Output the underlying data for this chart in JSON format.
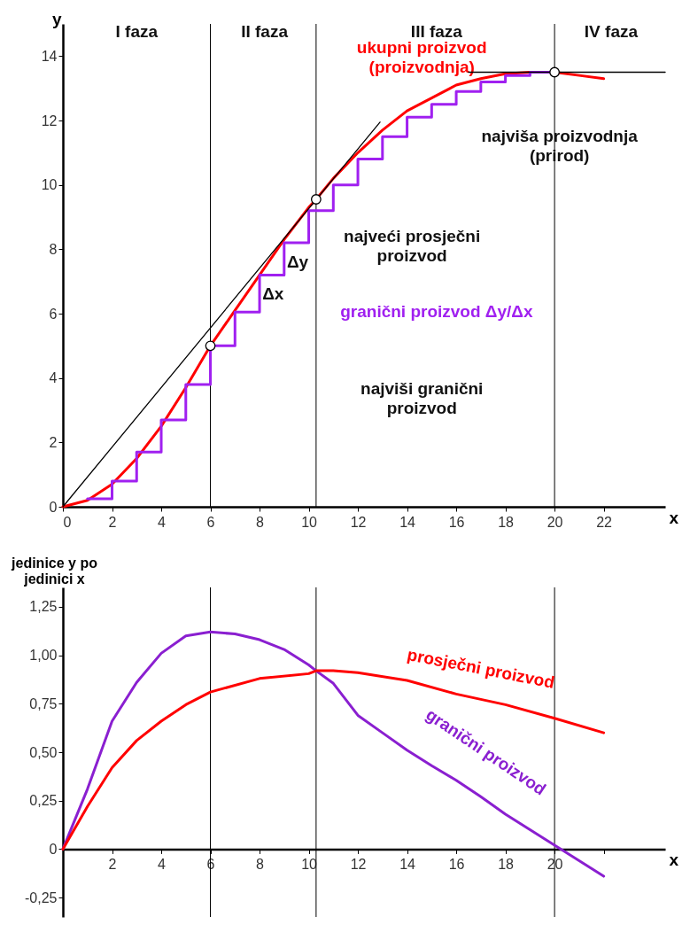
{
  "chart_data": [
    {
      "type": "line",
      "xlabel": "x",
      "ylabel": "y",
      "xlim": [
        0,
        24.5
      ],
      "ylim": [
        0,
        15
      ],
      "xticks": [
        0,
        2,
        4,
        6,
        8,
        10,
        12,
        14,
        16,
        18,
        20,
        22
      ],
      "yticks": [
        0,
        2,
        4,
        6,
        8,
        10,
        12,
        14
      ],
      "grid": false,
      "series": [
        {
          "name": "ukupni proizvod (proizvodnja)",
          "color": "#ff0000",
          "x": [
            0,
            1,
            2,
            3,
            4,
            5,
            6,
            7,
            8,
            9,
            10,
            10.3,
            11,
            12,
            13,
            14,
            15,
            16,
            17,
            18,
            19,
            20,
            21,
            22
          ],
          "values": [
            0,
            0.2,
            0.7,
            1.5,
            2.5,
            3.7,
            5.0,
            6.1,
            7.2,
            8.3,
            9.3,
            9.55,
            10.2,
            11.0,
            11.7,
            12.3,
            12.7,
            13.1,
            13.3,
            13.45,
            13.5,
            13.5,
            13.4,
            13.3
          ]
        },
        {
          "name": "granični proizvod Δy/Δx",
          "type": "step",
          "color": "#a020f0",
          "x": [
            1,
            2,
            3,
            4,
            5,
            6,
            7,
            8,
            9,
            10,
            11,
            12,
            13,
            14,
            15,
            16,
            17,
            18,
            19,
            20
          ],
          "values": [
            0.25,
            0.8,
            1.7,
            2.7,
            3.8,
            5.0,
            6.05,
            7.2,
            8.2,
            9.2,
            10.0,
            10.8,
            11.5,
            12.1,
            12.5,
            12.9,
            13.2,
            13.4,
            13.5,
            13.5
          ]
        },
        {
          "color": "#000000",
          "x": [
            0,
            12.9
          ],
          "values": [
            0,
            11.95
          ]
        },
        {
          "color": "#000000",
          "x": [
            16.5,
            24.5
          ],
          "values": [
            13.5,
            13.5
          ]
        },
        {
          "type": "scatter",
          "color": "#000000",
          "x": [
            6,
            10.3,
            20
          ],
          "values": [
            5.0,
            9.55,
            13.5
          ]
        }
      ],
      "ref_lines": [
        {
          "axis": "x",
          "value": 6,
          "color": "#000000"
        },
        {
          "axis": "x",
          "value": 10.3,
          "color": "#000000"
        },
        {
          "axis": "x",
          "value": 20,
          "color": "#000000"
        }
      ],
      "annotations": [
        "I faza",
        "II faza",
        "III faza",
        "IV faza",
        "najviša proizvodnja (prirod)",
        "najveći prosječni proizvod",
        "najviši granični proizvod",
        "Δy",
        "Δx"
      ]
    },
    {
      "type": "line",
      "xlabel": "x",
      "ylabel": "jedinice y po jedinici x",
      "xlim": [
        0,
        24.5
      ],
      "ylim": [
        -0.35,
        1.35
      ],
      "xticks": [
        2,
        4,
        6,
        8,
        10,
        12,
        14,
        16,
        18,
        20,
        {
          "value": 22,
          "label": null
        }
      ],
      "yticks": [
        {
          "value": -0.25,
          "label": "-0,25"
        },
        0,
        {
          "value": 0.25,
          "label": "0,25"
        },
        {
          "value": 0.5,
          "label": "0,50"
        },
        {
          "value": 0.75,
          "label": "0,75"
        },
        {
          "value": 1,
          "label": "1,00"
        },
        {
          "value": 1.25,
          "label": "1,25"
        }
      ],
      "grid": false,
      "series": [
        {
          "name": "granični proizvod",
          "color": "#8a1fd0",
          "x": [
            0,
            1,
            2,
            3,
            4,
            5,
            6,
            7,
            8,
            9,
            10,
            10.3,
            11,
            12,
            13,
            14,
            15,
            16,
            17,
            18,
            19,
            20,
            21,
            22
          ],
          "values": [
            0,
            0.31,
            0.66,
            0.86,
            1.01,
            1.1,
            1.12,
            1.11,
            1.08,
            1.03,
            0.95,
            0.92,
            0.855,
            0.69,
            0.6,
            0.51,
            0.43,
            0.355,
            0.27,
            0.18,
            0.1,
            0.02,
            -0.06,
            -0.14
          ]
        },
        {
          "name": "prosječni proizvod",
          "color": "#ff0000",
          "x": [
            0,
            1,
            2,
            3,
            4,
            5,
            6,
            8,
            10,
            10.3,
            11,
            12,
            14,
            16,
            18,
            20,
            22
          ],
          "values": [
            0,
            0.22,
            0.42,
            0.56,
            0.66,
            0.745,
            0.81,
            0.88,
            0.905,
            0.92,
            0.92,
            0.91,
            0.87,
            0.8,
            0.745,
            0.675,
            0.6
          ]
        }
      ],
      "ref_lines": [
        {
          "axis": "x",
          "value": 6,
          "color": "#000000"
        },
        {
          "axis": "x",
          "value": 10.3,
          "color": "#000000"
        },
        {
          "axis": "x",
          "value": 20,
          "color": "#000000"
        }
      ]
    }
  ]
}
